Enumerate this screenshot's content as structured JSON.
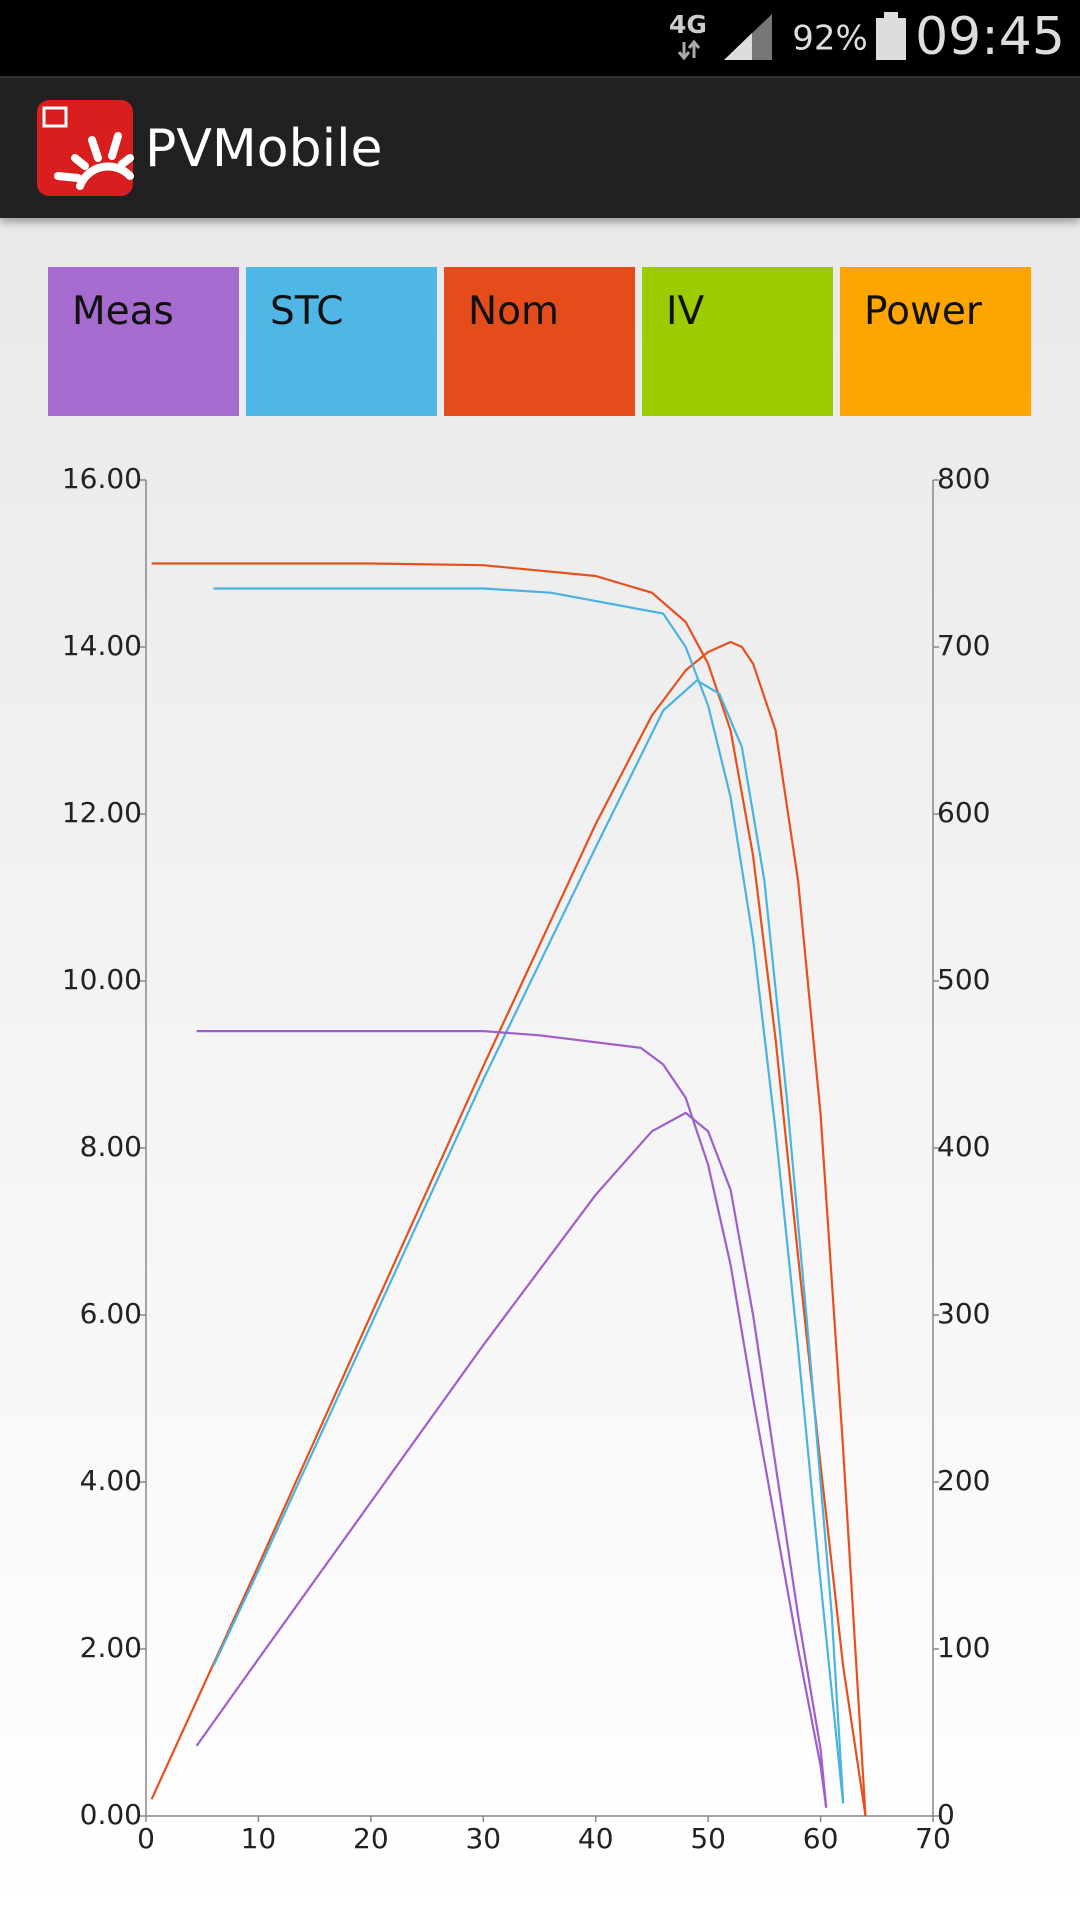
{
  "status_bar": {
    "network": "4G",
    "battery": "92%",
    "time": "09:45"
  },
  "app_bar": {
    "title": "PVMobile"
  },
  "tabs": [
    {
      "label": "Meas",
      "color": "#a66bcf"
    },
    {
      "label": "STC",
      "color": "#4fb6e6"
    },
    {
      "label": "Nom",
      "color": "#e54c1c"
    },
    {
      "label": "IV",
      "color": "#9ccc00"
    },
    {
      "label": "Power",
      "color": "#ffa500"
    }
  ],
  "chart_data": {
    "type": "line",
    "xlim": [
      0,
      70
    ],
    "xticks": [
      0,
      10,
      20,
      30,
      40,
      50,
      60,
      70
    ],
    "ylim": [
      0,
      16
    ],
    "yticks": [
      {
        "value": 0,
        "label": "0.00"
      },
      {
        "value": 2,
        "label": "2.00"
      },
      {
        "value": 4,
        "label": "4.00"
      },
      {
        "value": 6,
        "label": "6.00"
      },
      {
        "value": 8,
        "label": "8.00"
      },
      {
        "value": 10,
        "label": "10.00"
      },
      {
        "value": 12,
        "label": "12.00"
      },
      {
        "value": 14,
        "label": "14.00"
      },
      {
        "value": 16,
        "label": "16.00"
      }
    ],
    "y2lim": [
      0,
      800
    ],
    "y2ticks": [
      0,
      100,
      200,
      300,
      400,
      500,
      600,
      700,
      800
    ],
    "series": [
      {
        "color": "#e5501e",
        "axis": "y",
        "x": [
          0.5,
          10,
          20,
          30,
          40,
          45,
          48,
          50,
          52,
          54,
          56,
          58,
          60,
          62,
          64
        ],
        "values": [
          15.0,
          15.0,
          15.0,
          14.98,
          14.85,
          14.65,
          14.3,
          13.8,
          13.0,
          11.5,
          9.3,
          6.7,
          4.2,
          1.8,
          0
        ]
      },
      {
        "color": "#e5501e",
        "axis": "y2",
        "x": [
          0.5,
          10,
          20,
          30,
          40,
          45,
          48,
          50,
          52,
          53,
          54,
          56,
          58,
          60,
          62,
          64
        ],
        "values": [
          10,
          150,
          300,
          449,
          594,
          659,
          686,
          697,
          703,
          700,
          690,
          650,
          560,
          420,
          220,
          0
        ]
      },
      {
        "color": "#4ab3e0",
        "axis": "y",
        "x": [
          6,
          30,
          36,
          46,
          48,
          50,
          52,
          54,
          56,
          58,
          60,
          62
        ],
        "values": [
          14.7,
          14.7,
          14.65,
          14.4,
          14.0,
          13.3,
          12.2,
          10.5,
          8.2,
          5.6,
          2.8,
          0.15
        ]
      },
      {
        "color": "#4ab3e0",
        "axis": "y2",
        "x": [
          6,
          10,
          20,
          30,
          40,
          46,
          49,
          51,
          53,
          55,
          57,
          59,
          61,
          62
        ],
        "values": [
          90,
          147,
          294,
          441,
          580,
          662,
          680,
          672,
          640,
          560,
          430,
          280,
          120,
          9
        ]
      },
      {
        "color": "#9e5fcb",
        "axis": "y",
        "x": [
          4.5,
          30,
          35,
          44,
          46,
          48,
          50,
          52,
          54,
          56,
          58,
          60,
          60.5
        ],
        "values": [
          9.4,
          9.4,
          9.35,
          9.2,
          9.0,
          8.6,
          7.8,
          6.6,
          5.0,
          3.5,
          2.0,
          0.6,
          0.1
        ]
      },
      {
        "color": "#9e5fcb",
        "axis": "y2",
        "x": [
          4.5,
          10,
          20,
          30,
          40,
          45,
          48,
          50,
          52,
          54,
          56,
          58,
          60,
          60.5
        ],
        "values": [
          42,
          94,
          188,
          282,
          372,
          410,
          421,
          410,
          375,
          300,
          210,
          120,
          40,
          5
        ]
      }
    ]
  }
}
